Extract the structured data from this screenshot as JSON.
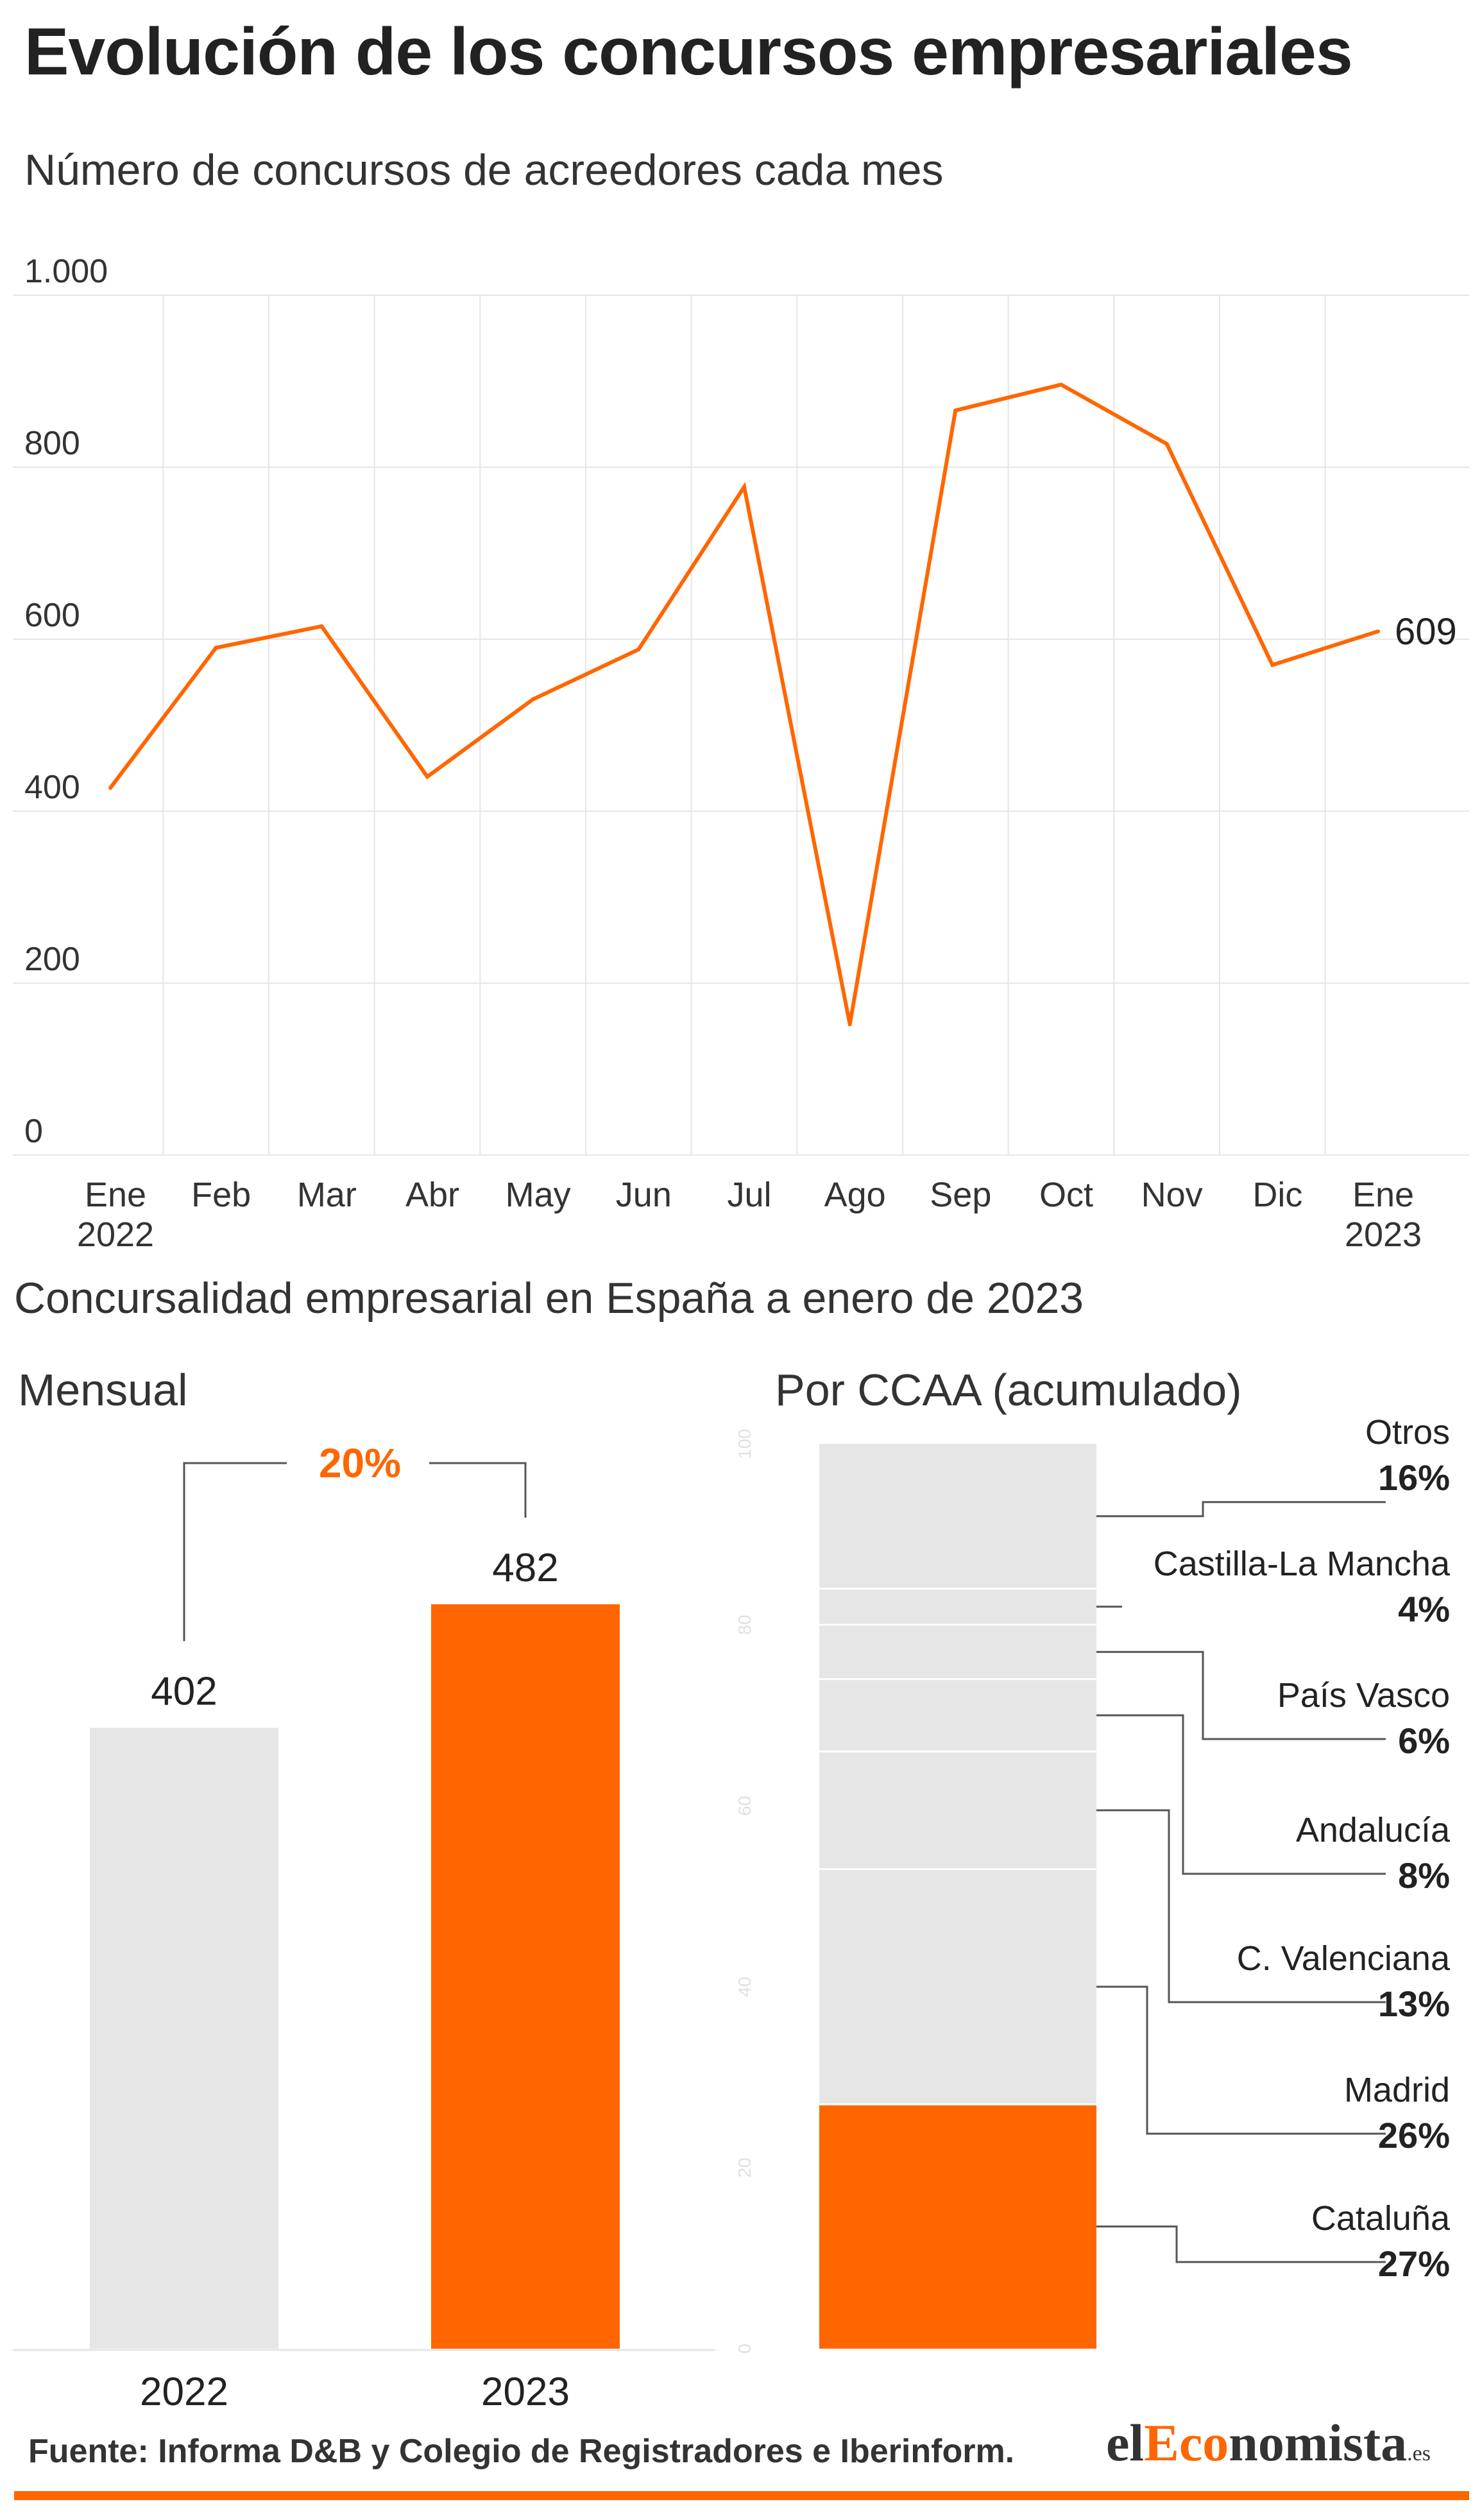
{
  "title": "Evolución de los concursos empresariales",
  "subtitle": "Número de concursos de acreedores cada mes",
  "section_title": "Concursalidad empresarial en España a enero de 2023",
  "source": "Fuente: Informa D&B y Colegio de Registradores e Iberinform.",
  "logo": {
    "part1": "el",
    "part2": "Eco",
    "part3": "nomista",
    "tld": ".es"
  },
  "colors": {
    "accent": "#ff6600",
    "gray_bar": "#e6e6e6",
    "grid": "#e6e6e6",
    "text": "#222222"
  },
  "chart_data": [
    {
      "type": "line",
      "title": "Número de concursos de acreedores cada mes",
      "categories": [
        "Ene 2022",
        "Feb",
        "Mar",
        "Abr",
        "May",
        "Jun",
        "Jul",
        "Ago",
        "Sep",
        "Oct",
        "Nov",
        "Dic",
        "Ene 2023"
      ],
      "tick_labels": [
        [
          "Ene",
          "2022"
        ],
        [
          "Feb"
        ],
        [
          "Mar"
        ],
        [
          "Abr"
        ],
        [
          "May"
        ],
        [
          "Jun"
        ],
        [
          "Jul"
        ],
        [
          "Ago"
        ],
        [
          "Sep"
        ],
        [
          "Oct"
        ],
        [
          "Nov"
        ],
        [
          "Dic"
        ],
        [
          "Ene",
          "2023"
        ]
      ],
      "values": [
        427,
        590,
        615,
        440,
        530,
        588,
        777,
        152,
        866,
        896,
        827,
        570,
        609
      ],
      "ylim": [
        0,
        1000
      ],
      "yticks": [
        0,
        200,
        400,
        600,
        800,
        1000
      ],
      "ytick_labels": [
        "0",
        "200",
        "400",
        "600",
        "800",
        "1.000"
      ],
      "end_label": "609",
      "grid": true,
      "color": "#ff6600"
    },
    {
      "type": "bar",
      "title": "Mensual",
      "categories": [
        "2022",
        "2023"
      ],
      "values": [
        402,
        482
      ],
      "value_labels": [
        "402",
        "482"
      ],
      "change_label": "20%",
      "colors": [
        "#e6e6e6",
        "#ff6600"
      ]
    },
    {
      "type": "stacked_bar",
      "title": "Por CCAA (acumulado)",
      "axis_ticks": [
        "0",
        "20",
        "40",
        "60",
        "80",
        "100"
      ],
      "segments": [
        {
          "name": "Cataluña",
          "value": 27,
          "label": "27%",
          "highlight": true
        },
        {
          "name": "Madrid",
          "value": 26,
          "label": "26%",
          "highlight": false
        },
        {
          "name": "C. Valenciana",
          "value": 13,
          "label": "13%",
          "highlight": false
        },
        {
          "name": "Andalucía",
          "value": 8,
          "label": "8%",
          "highlight": false
        },
        {
          "name": "País Vasco",
          "value": 6,
          "label": "6%",
          "highlight": false
        },
        {
          "name": "Castilla-La Mancha",
          "value": 4,
          "label": "4%",
          "highlight": false
        },
        {
          "name": "Otros",
          "value": 16,
          "label": "16%",
          "highlight": false
        }
      ]
    }
  ]
}
